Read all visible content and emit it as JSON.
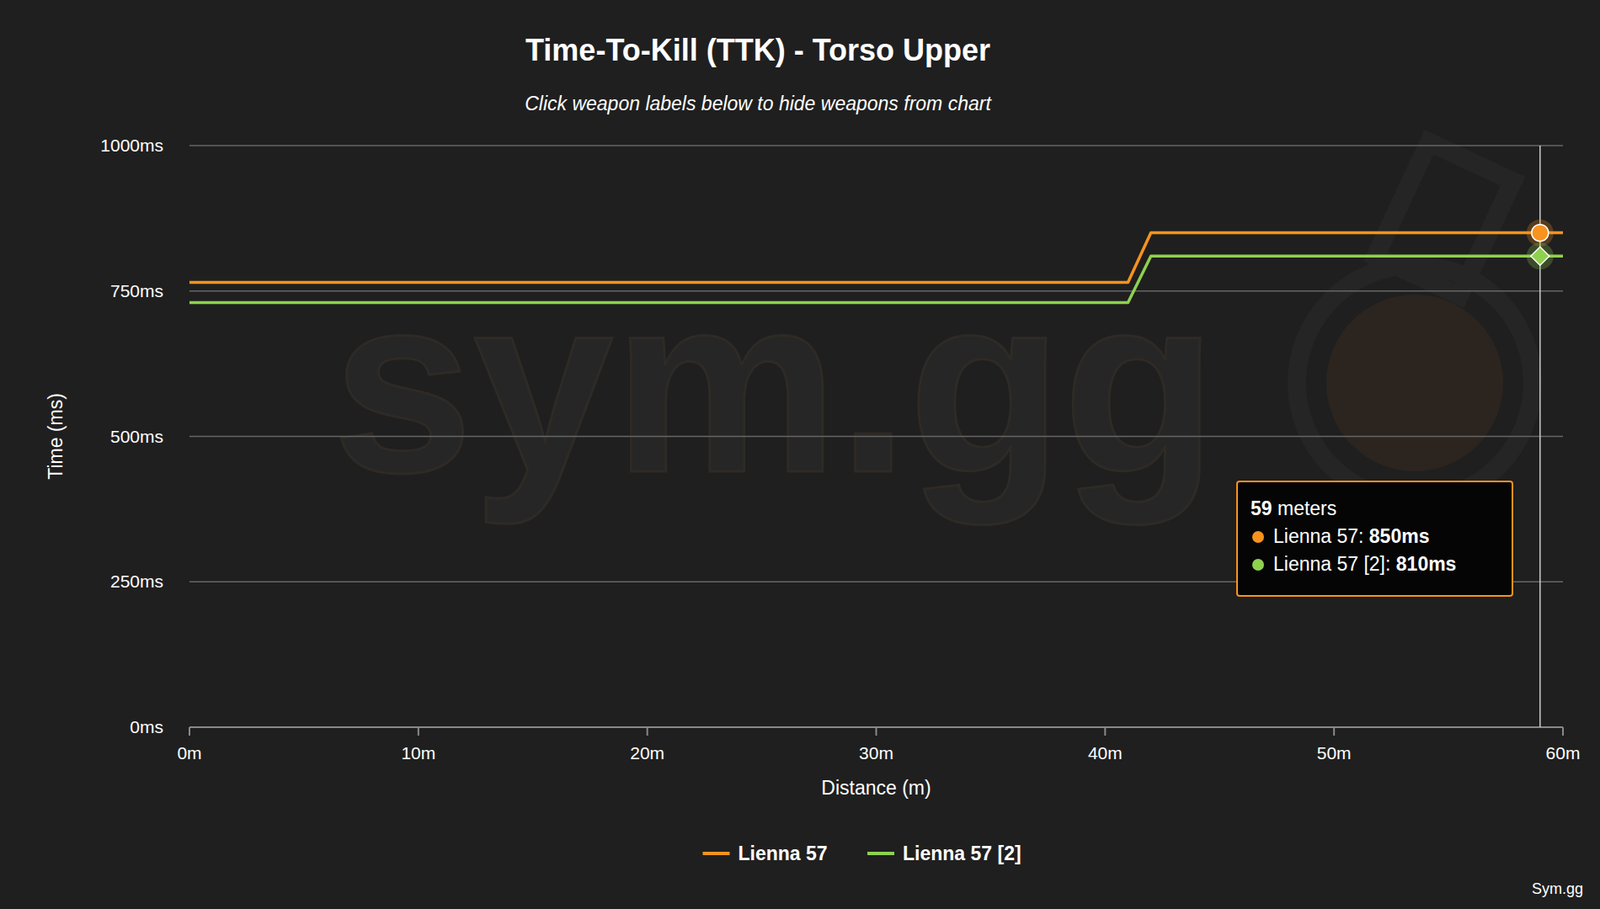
{
  "chart_data": {
    "type": "line",
    "title": "Time-To-Kill (TTK) - Torso Upper",
    "subtitle": "Click weapon labels below to hide weapons from chart",
    "x_label": "Distance (m)",
    "y_label": "Time (ms)",
    "watermark": "sym.gg",
    "credit": "Sym.gg",
    "x": [
      0,
      41,
      42,
      60
    ],
    "series": [
      {
        "name": "Lienna 57",
        "color": "#f7931e",
        "marker": "circle",
        "values": [
          765,
          765,
          850,
          850
        ]
      },
      {
        "name": "Lienna 57 [2]",
        "color": "#8fd14f",
        "marker": "diamond",
        "values": [
          730,
          730,
          810,
          810
        ]
      }
    ],
    "xlim": [
      0,
      60
    ],
    "xticks": [
      {
        "value": 0,
        "label": "0m"
      },
      {
        "value": 10,
        "label": "10m"
      },
      {
        "value": 20,
        "label": "20m"
      },
      {
        "value": 30,
        "label": "30m"
      },
      {
        "value": 40,
        "label": "40m"
      },
      {
        "value": 50,
        "label": "50m"
      },
      {
        "value": 60,
        "label": "60m"
      }
    ],
    "ylim": [
      0,
      1000
    ],
    "yticks": [
      {
        "value": 0,
        "label": "0ms"
      },
      {
        "value": 250,
        "label": "250ms"
      },
      {
        "value": 500,
        "label": "500ms"
      },
      {
        "value": 750,
        "label": "750ms"
      },
      {
        "value": 1000,
        "label": "1000ms"
      }
    ],
    "grid": true,
    "legend": "bottom",
    "tooltip": {
      "x": 59,
      "label": "59 meters",
      "lines": [
        {
          "label": "Lienna 57:",
          "value": 850,
          "value_label": "850ms"
        },
        {
          "label": "Lienna 57 [2]:",
          "value": 810,
          "value_label": "810ms"
        }
      ]
    }
  }
}
